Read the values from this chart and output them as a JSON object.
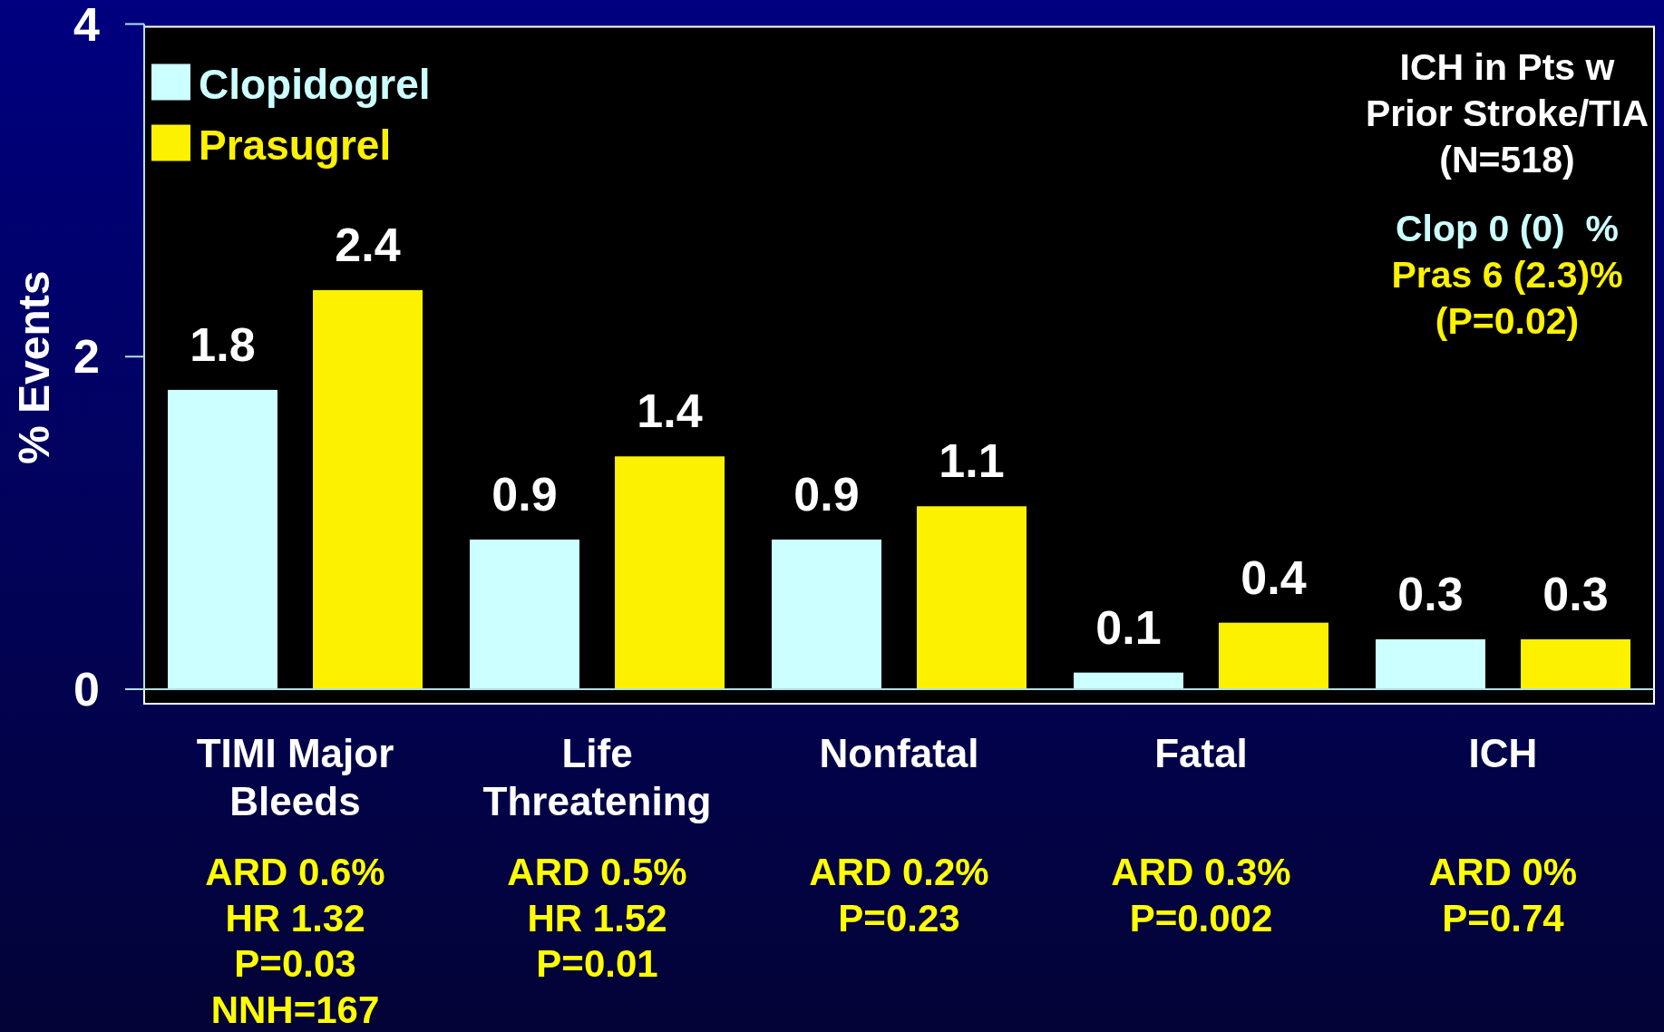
{
  "chart_data": {
    "type": "bar",
    "categories": [
      "TIMI Major Bleeds",
      "Life Threatening",
      "Nonfatal",
      "Fatal",
      "ICH"
    ],
    "series": [
      {
        "name": "Clopidogrel",
        "color": "#ccffff",
        "values": [
          1.8,
          0.9,
          0.9,
          0.1,
          0.3
        ]
      },
      {
        "name": "Prasugrel",
        "color": "#fcf200",
        "values": [
          2.4,
          1.4,
          1.1,
          0.4,
          0.3
        ]
      }
    ],
    "ylabel": "% Events",
    "ylim": [
      0,
      4
    ],
    "yticks": [
      0,
      2,
      4
    ],
    "data_labels": true,
    "legend": "top left",
    "annotations": [
      "ARD 0.6%\nHR 1.32\nP=0.03\nNNH=167",
      "ARD 0.5%\nHR 1.52\nP=0.01",
      "ARD 0.2%\nP=0.23",
      "ARD 0.3%\nP=0.002",
      "ARD 0%\nP=0.74",
      "ICH in Pts w\nPrior Stroke/TIA\n(N=518)",
      "Clop 0 (0)  %",
      "Pras 6 (2.3)%\n(P=0.02)"
    ]
  }
}
